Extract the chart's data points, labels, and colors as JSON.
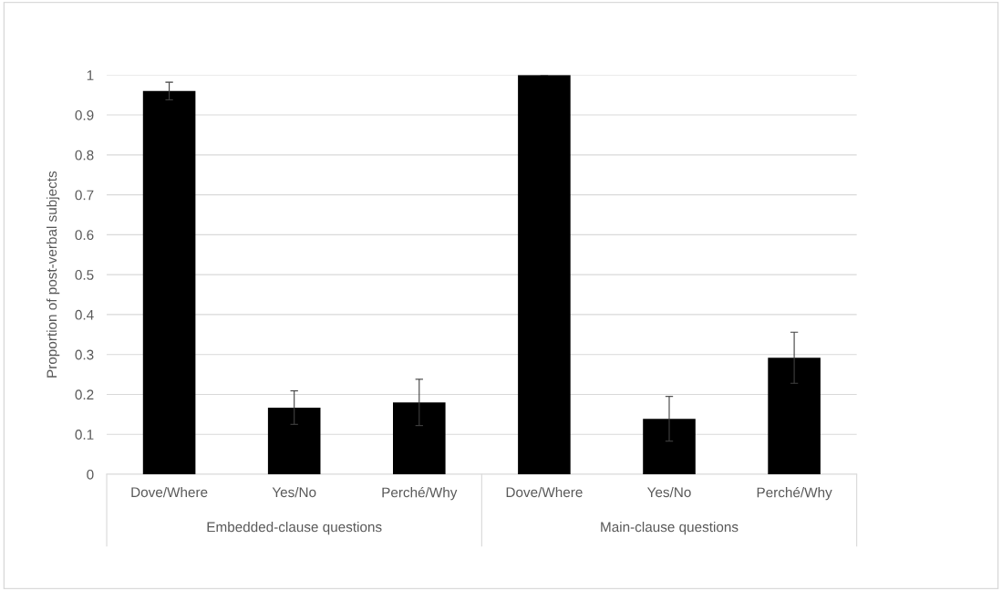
{
  "chart_data": {
    "type": "bar",
    "ylabel": "Proportion of post-verbal subjects",
    "categories": [
      "Dove/Where",
      "Yes/No",
      "Perché/Why",
      "Dove/Where",
      "Yes/No",
      "Perché/Why"
    ],
    "values": [
      0.96,
      0.167,
      0.18,
      1.0,
      0.139,
      0.292
    ],
    "errors": [
      0.022,
      0.042,
      0.058,
      null,
      0.056,
      0.064
    ],
    "color": "#000000",
    "annotations": [
      "Embedded-clause questions",
      "Main-clause questions"
    ],
    "ylim": [
      0,
      1
    ],
    "yticks": [
      0,
      0.1,
      0.2,
      0.3,
      0.4,
      0.5,
      0.6,
      0.7,
      0.8,
      0.9,
      1
    ],
    "grid": "y"
  }
}
